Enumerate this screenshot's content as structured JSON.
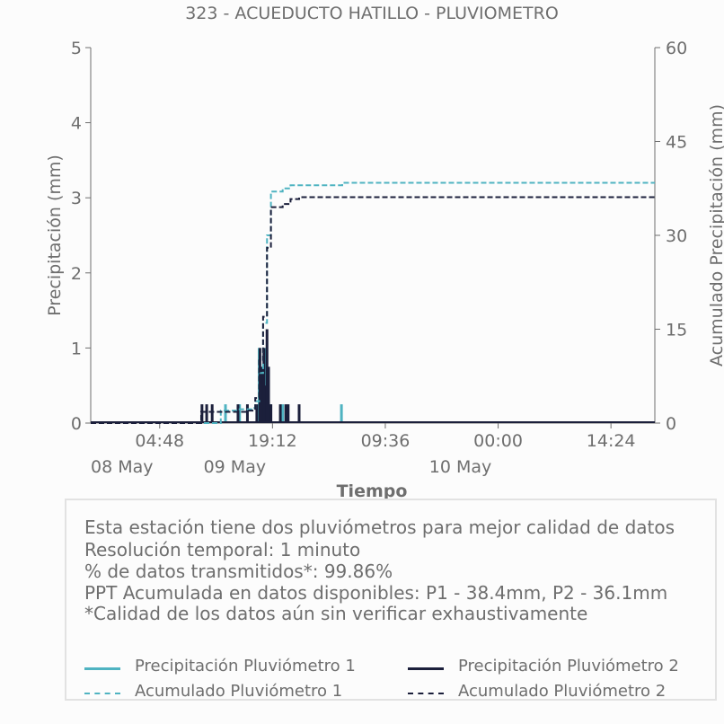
{
  "chart_data": {
    "type": "line",
    "title": "323 - ACUEDUCTO HATILLO - PLUVIOMETRO",
    "xlabel": "Tiempo",
    "ylabel": "Precipitación (mm)",
    "y2label": "Acumulado Precipitación (mm)",
    "ylim": [
      0,
      5
    ],
    "y2lim": [
      0,
      60
    ],
    "yticks": [
      "0",
      "1",
      "2",
      "3",
      "4",
      "5"
    ],
    "y2ticks": [
      "0",
      "15",
      "30",
      "45",
      "60"
    ],
    "xlim_hours": [
      -4,
      68
    ],
    "xticks": [
      {
        "hours": 4.8,
        "label": "04:48",
        "date": "08 May"
      },
      {
        "hours": 19.2,
        "label": "19:12",
        "date": "09 May"
      },
      {
        "hours": 33.6,
        "label": "09:36",
        "date": ""
      },
      {
        "hours": 48.0,
        "label": "00:00",
        "date": "10 May"
      },
      {
        "hours": 62.4,
        "label": "14:24",
        "date": ""
      }
    ],
    "colors": {
      "p1": "#4fb3c1",
      "p2": "#1b1f3b",
      "axis": "#6e6e6e"
    },
    "series": [
      {
        "name": "Precipitación Pluviómetro 1",
        "style": "bar",
        "color": "#4fb3c1",
        "points": [
          [
            13.2,
            0.25
          ],
          [
            15.0,
            0.25
          ],
          [
            17.5,
            1.0
          ],
          [
            18.2,
            1.0
          ],
          [
            18.9,
            0.25
          ],
          [
            20.5,
            0.25
          ],
          [
            28.0,
            0.25
          ]
        ]
      },
      {
        "name": "Precipitación Pluviómetro 2",
        "style": "bar",
        "color": "#1b1f3b",
        "points": [
          [
            10.2,
            0.25
          ],
          [
            10.8,
            0.25
          ],
          [
            11.5,
            0.25
          ],
          [
            14.8,
            0.25
          ],
          [
            16.0,
            0.25
          ],
          [
            17.2,
            0.25
          ],
          [
            17.6,
            1.0
          ],
          [
            17.9,
            0.75
          ],
          [
            18.1,
            1.0
          ],
          [
            18.3,
            0.5
          ],
          [
            18.5,
            1.25
          ],
          [
            18.7,
            0.75
          ],
          [
            19.0,
            0.25
          ],
          [
            20.2,
            0.25
          ],
          [
            20.9,
            0.25
          ],
          [
            21.2,
            0.25
          ],
          [
            22.6,
            0.25
          ]
        ]
      },
      {
        "name": "Acumulado Pluviómetro 1",
        "style": "dashed",
        "axis": "right",
        "color": "#4fb3c1",
        "points": [
          [
            -4,
            0
          ],
          [
            12.5,
            0
          ],
          [
            12.6,
            2.0
          ],
          [
            15.0,
            2.2
          ],
          [
            16.5,
            2.4
          ],
          [
            17.0,
            3.5
          ],
          [
            17.5,
            8.0
          ],
          [
            18.0,
            16.0
          ],
          [
            18.5,
            30.0
          ],
          [
            19.0,
            37.0
          ],
          [
            20.5,
            37.5
          ],
          [
            21.5,
            38.0
          ],
          [
            28.0,
            38.0
          ],
          [
            28.1,
            38.4
          ],
          [
            68,
            38.4
          ]
        ]
      },
      {
        "name": "Acumulado Pluviómetro 2",
        "style": "dashed",
        "axis": "right",
        "color": "#1b1f3b",
        "points": [
          [
            -4,
            0
          ],
          [
            10.0,
            0
          ],
          [
            10.1,
            1.8
          ],
          [
            16.0,
            2.0
          ],
          [
            17.0,
            4.0
          ],
          [
            17.5,
            10.0
          ],
          [
            18.0,
            17.0
          ],
          [
            18.5,
            28.0
          ],
          [
            19.0,
            34.5
          ],
          [
            20.5,
            35.0
          ],
          [
            21.5,
            35.8
          ],
          [
            22.6,
            36.1
          ],
          [
            68,
            36.1
          ]
        ]
      }
    ]
  },
  "info": {
    "lines": [
      "Esta estación tiene dos pluviómetros para mejor calidad de datos",
      "Resolución temporal: 1 minuto",
      "% de datos transmitidos*: 99.86%",
      "PPT Acumulada en datos disponibles: P1 - 38.4mm, P2 - 36.1mm",
      "*Calidad de los datos aún sin verificar exhaustivamente"
    ]
  },
  "legend": [
    "Precipitación Pluviómetro 1",
    "Precipitación Pluviómetro 2",
    "Acumulado Pluviómetro 1",
    "Acumulado Pluviómetro 2"
  ]
}
